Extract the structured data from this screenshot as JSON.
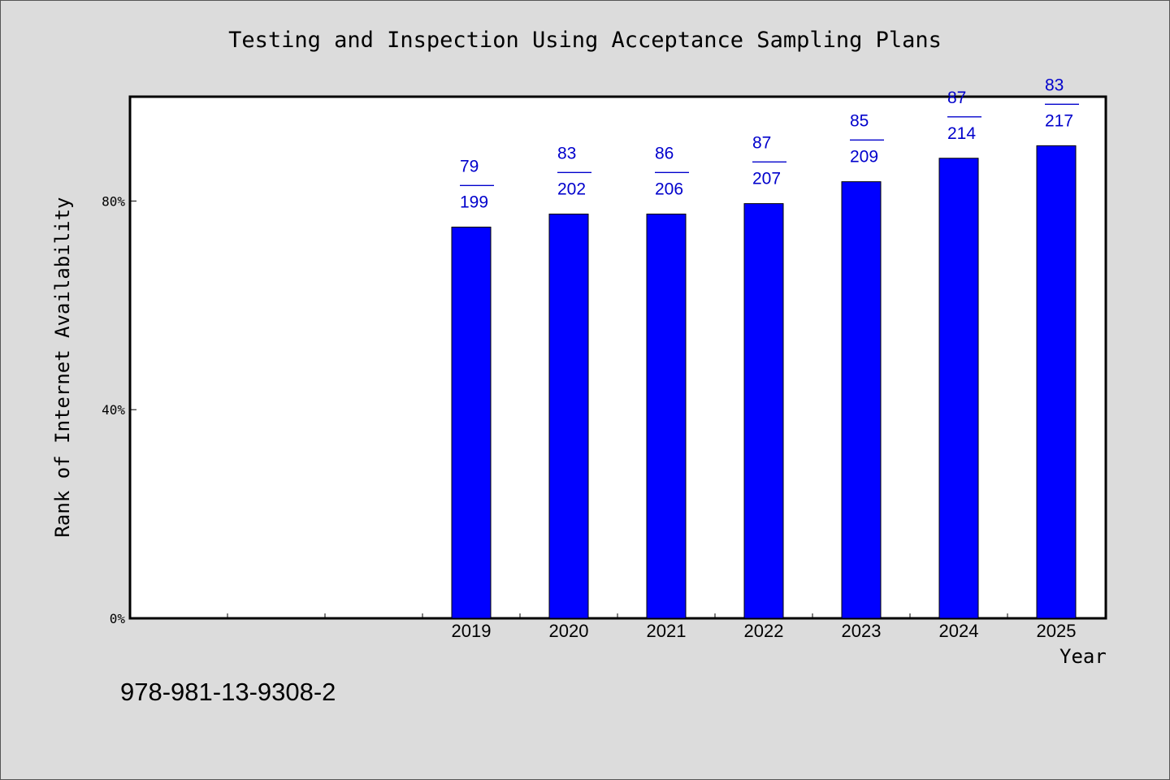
{
  "chart_data": {
    "type": "bar",
    "title": "Testing and Inspection Using Acceptance Sampling Plans",
    "xlabel": "Year",
    "ylabel": "Rank of Internet Availability",
    "categories": [
      "",
      "",
      "",
      "2019",
      "2020",
      "2021",
      "2022",
      "2023",
      "2024",
      "2025"
    ],
    "values": [
      null,
      null,
      null,
      75.0,
      77.5,
      77.5,
      79.5,
      83.7,
      88.2,
      90.6
    ],
    "data_labels": [
      null,
      null,
      null,
      {
        "top": "79",
        "sep": "——",
        "bottom": "199"
      },
      {
        "top": "83",
        "sep": "——",
        "bottom": "202"
      },
      {
        "top": "86",
        "sep": "——",
        "bottom": "206"
      },
      {
        "top": "87",
        "sep": "——",
        "bottom": "207"
      },
      {
        "top": "85",
        "sep": "——",
        "bottom": "209"
      },
      {
        "top": "87",
        "sep": "——",
        "bottom": "214"
      },
      {
        "top": "83",
        "sep": "——",
        "bottom": "217"
      }
    ],
    "yticks": [
      0,
      40,
      80
    ],
    "ytick_labels": [
      "0%",
      "40%",
      "80%"
    ],
    "ylim": [
      0,
      100
    ],
    "grid": false,
    "colors": {
      "bar": "#0000ff",
      "label": "#0000cc",
      "background": "#dcdcdc",
      "plot": "#ffffff"
    }
  },
  "footnote": "978-981-13-9308-2"
}
